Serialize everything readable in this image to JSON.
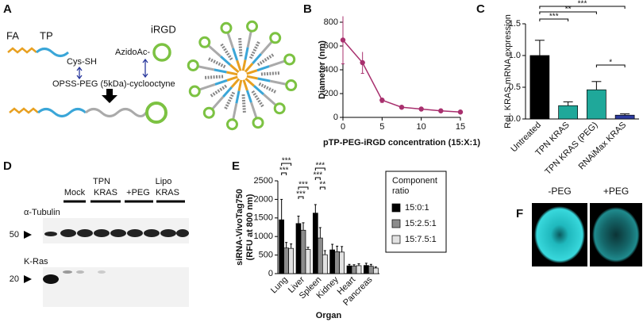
{
  "panel_labels": [
    "A",
    "B",
    "C",
    "D",
    "E",
    "F"
  ],
  "diagram": {
    "fa": "FA",
    "tp": "TP",
    "cys": "Cys-SH",
    "irgd": "iRGD",
    "azido": "AzidoAc-",
    "linker": "OPSS-PEG (5kDa)-cyclooctyne"
  },
  "blot": {
    "lanes": [
      "Mock",
      "TPN",
      "KRAS",
      "+PEG",
      "Lipo",
      "KRAS"
    ],
    "tubulin": "α-Tubulin",
    "kras": "K-Ras",
    "marker_50": "50",
    "marker_20": "20"
  },
  "images": {
    "left": "-PEG",
    "right": "+PEG"
  },
  "chart_data": [
    {
      "type": "line",
      "xlabel": "pTP-PEG-iRGD concentration (15:X:1)",
      "ylabel": "Diameter (nm)",
      "x": [
        0,
        2.5,
        5,
        7.5,
        10,
        12.5,
        15
      ],
      "values": [
        650,
        460,
        145,
        85,
        70,
        55,
        45
      ],
      "errors": [
        200,
        90,
        20,
        8,
        6,
        6,
        5
      ],
      "color": "#a8306e",
      "xlim": [
        0,
        15
      ],
      "ylim": [
        0,
        800
      ],
      "xticks": [
        0,
        5,
        10,
        15
      ],
      "yticks": [
        0,
        200,
        400,
        600,
        800
      ]
    },
    {
      "type": "bar",
      "ylabel": "Rel. KRAS mRNA expression",
      "categories": [
        "Untreated",
        "TPN KRAS",
        "TPN KRAS (PEG)",
        "RNAiMax KRAS"
      ],
      "values": [
        1.0,
        0.21,
        0.46,
        0.06
      ],
      "errors": [
        0.24,
        0.06,
        0.13,
        0.02
      ],
      "colors": [
        "#000000",
        "#1fa89a",
        "#1fa89a",
        "#2b3a9e"
      ],
      "ylim": [
        0,
        1.5
      ],
      "yticks": [
        {
          "value": 0,
          "label": "0.0"
        },
        {
          "value": 0.5,
          "label": "0.5"
        },
        {
          "value": 1,
          "label": "1.0"
        },
        {
          "value": 1.5,
          "label": "1.5"
        }
      ],
      "annotations": [
        "***",
        "**",
        "***",
        "*"
      ]
    },
    {
      "type": "bar",
      "xlabel": "Organ",
      "ylabel": [
        "siRNA-VivoTag750",
        "(RFU at 800 nm)"
      ],
      "categories": [
        "Lung",
        "Liver",
        "Spleen",
        "Kidney",
        "Heart",
        "Pancreas"
      ],
      "series": [
        {
          "name": "15:0:1",
          "color": "#000000",
          "values": [
            1450,
            1350,
            1630,
            640,
            210,
            220
          ],
          "errors": [
            550,
            200,
            230,
            150,
            40,
            60
          ]
        },
        {
          "name": "15:2.5:1",
          "color": "#8c8c8c",
          "values": [
            690,
            1170,
            960,
            590,
            200,
            200
          ],
          "errors": [
            150,
            200,
            280,
            150,
            40,
            50
          ]
        },
        {
          "name": "15:7.5:1",
          "color": "#e2e2e2",
          "values": [
            680,
            650,
            510,
            580,
            215,
            150
          ],
          "errors": [
            120,
            60,
            110,
            150,
            50,
            30
          ]
        }
      ],
      "legend_title": [
        "Component",
        "ratio"
      ],
      "ylim": [
        0,
        2500
      ],
      "yticks": [
        0,
        500,
        1000,
        1500,
        2000,
        2500
      ],
      "annotations": [
        "***",
        "***",
        "***",
        "***",
        "***",
        "***",
        "**"
      ]
    }
  ]
}
